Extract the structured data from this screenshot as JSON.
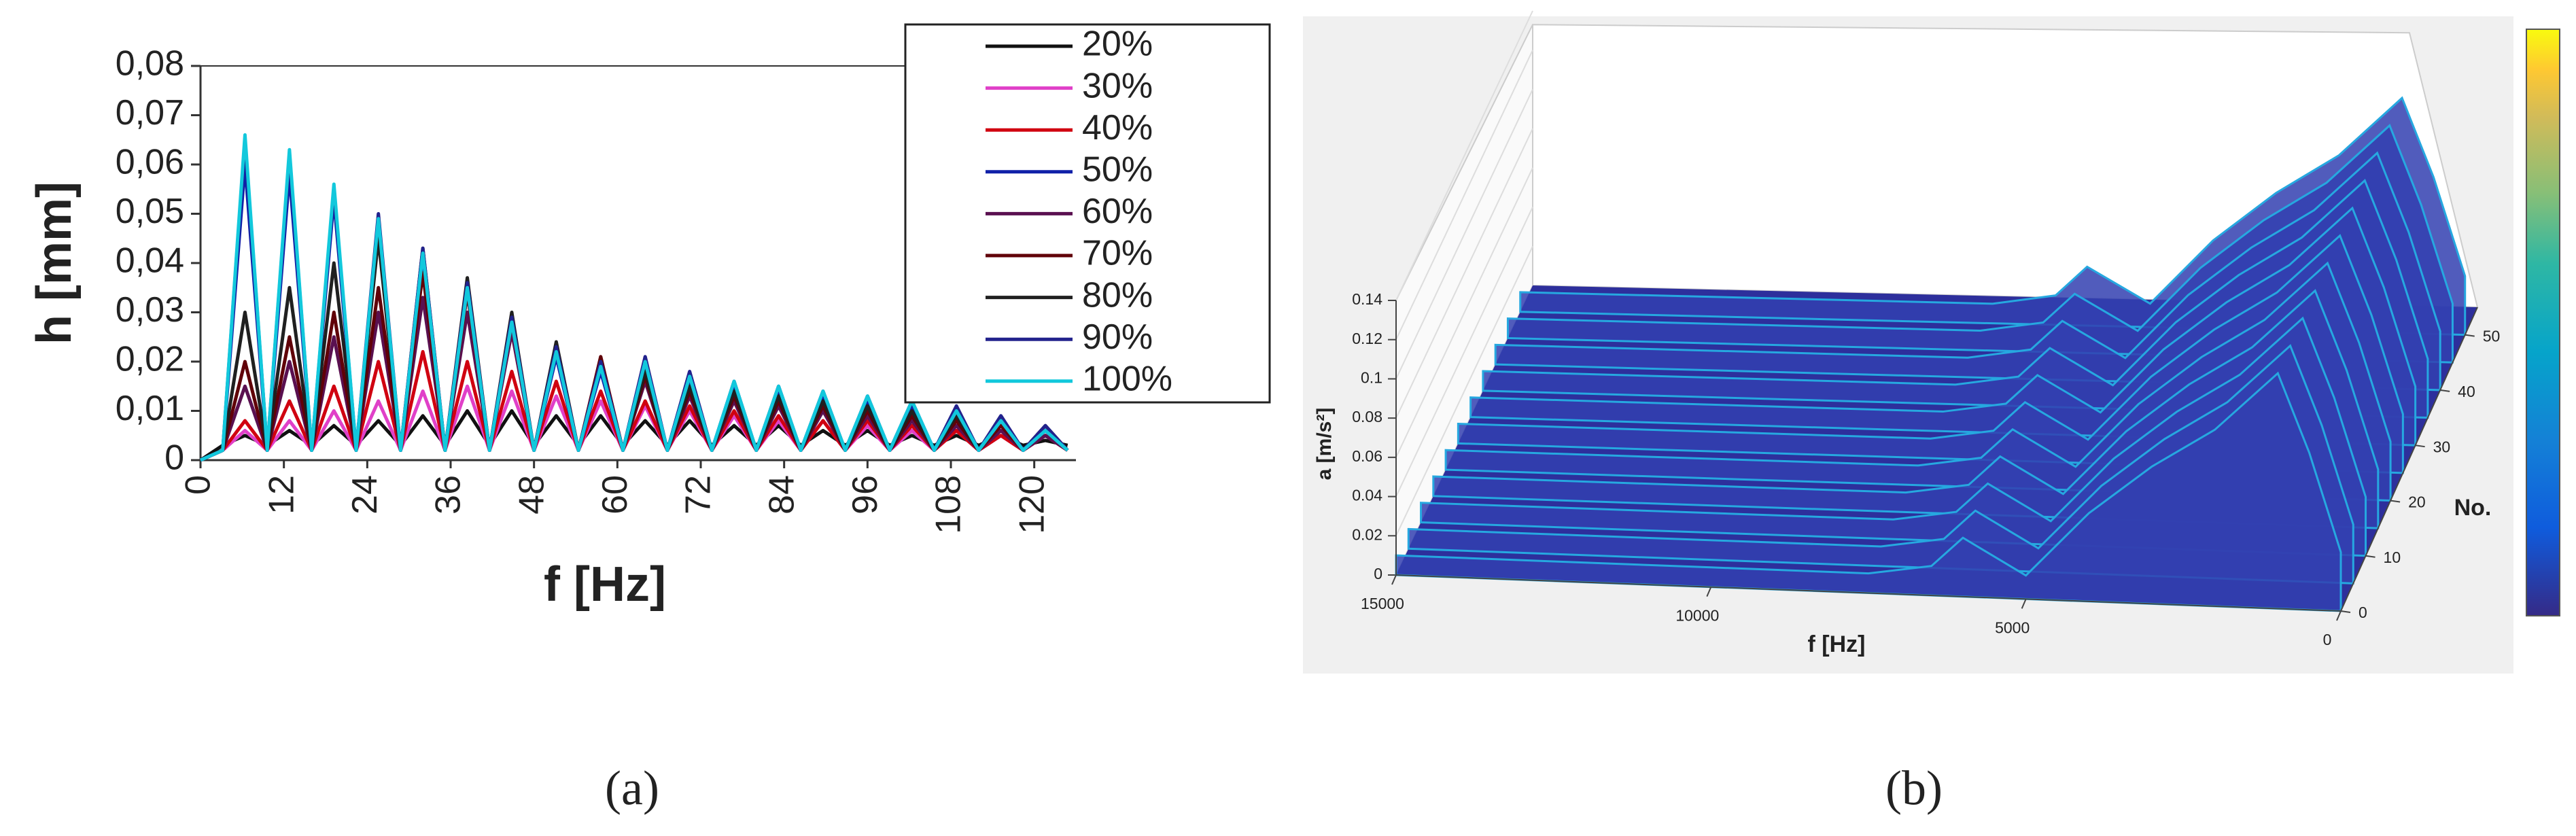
{
  "chart_data": [
    {
      "type": "line",
      "xlabel": "f [Hz]",
      "ylabel": "h [mm]",
      "caption": "(a)",
      "x": [
        0,
        3.2,
        6.4,
        9.6,
        12.8,
        16,
        19.2,
        22.4,
        25.6,
        28.8,
        32,
        35.2,
        38.4,
        41.6,
        44.8,
        48,
        51.2,
        54.4,
        57.6,
        60.8,
        64,
        67.2,
        70.4,
        73.6,
        76.8,
        80,
        83.2,
        86.4,
        89.6,
        92.8,
        96,
        99.2,
        102.4,
        105.6,
        108.8,
        112,
        115.2,
        118.4,
        121.6,
        124.8
      ],
      "xlim": [
        0,
        126
      ],
      "xticks": [
        0,
        12,
        24,
        36,
        48,
        60,
        72,
        84,
        96,
        108,
        120
      ],
      "ylim": [
        0,
        0.08
      ],
      "yticks": [
        0,
        {
          "value": 0.01,
          "label": "0,01"
        },
        {
          "value": 0.02,
          "label": "0,02"
        },
        {
          "value": 0.03,
          "label": "0,03"
        },
        {
          "value": 0.04,
          "label": "0,04"
        },
        {
          "value": 0.05,
          "label": "0,05"
        },
        {
          "value": 0.06,
          "label": "0,06"
        },
        {
          "value": 0.07,
          "label": "0,07"
        },
        {
          "value": 0.08,
          "label": "0,08"
        }
      ],
      "legend": "upper right",
      "series": [
        {
          "name": "20%",
          "color": "#111111",
          "values": [
            0,
            0.003,
            0.005,
            0.003,
            0.006,
            0.003,
            0.007,
            0.003,
            0.008,
            0.003,
            0.009,
            0.003,
            0.01,
            0.003,
            0.01,
            0.003,
            0.009,
            0.003,
            0.009,
            0.003,
            0.008,
            0.003,
            0.008,
            0.003,
            0.007,
            0.003,
            0.007,
            0.003,
            0.006,
            0.003,
            0.006,
            0.003,
            0.005,
            0.003,
            0.005,
            0.003,
            0.005,
            0.003,
            0.004,
            0.003
          ]
        },
        {
          "name": "30%",
          "color": "#e040c8",
          "values": [
            0,
            0.002,
            0.006,
            0.002,
            0.008,
            0.002,
            0.01,
            0.002,
            0.012,
            0.002,
            0.014,
            0.002,
            0.015,
            0.002,
            0.014,
            0.002,
            0.013,
            0.002,
            0.012,
            0.002,
            0.011,
            0.002,
            0.01,
            0.002,
            0.009,
            0.002,
            0.008,
            0.002,
            0.008,
            0.002,
            0.007,
            0.002,
            0.006,
            0.002,
            0.006,
            0.002,
            0.005,
            0.002,
            0.005,
            0.002
          ]
        },
        {
          "name": "40%",
          "color": "#d00010",
          "values": [
            0,
            0.002,
            0.008,
            0.002,
            0.012,
            0.002,
            0.015,
            0.002,
            0.02,
            0.002,
            0.022,
            0.002,
            0.02,
            0.002,
            0.018,
            0.002,
            0.016,
            0.002,
            0.014,
            0.002,
            0.012,
            0.002,
            0.011,
            0.002,
            0.01,
            0.002,
            0.009,
            0.002,
            0.008,
            0.002,
            0.008,
            0.002,
            0.007,
            0.002,
            0.006,
            0.002,
            0.005,
            0.002,
            0.005,
            0.002
          ]
        },
        {
          "name": "50%",
          "color": "#1020a8",
          "values": [
            0,
            0.002,
            0.06,
            0.002,
            0.058,
            0.002,
            0.053,
            0.002,
            0.048,
            0.002,
            0.041,
            0.002,
            0.034,
            0.002,
            0.027,
            0.002,
            0.021,
            0.002,
            0.018,
            0.002,
            0.019,
            0.002,
            0.016,
            0.002,
            0.015,
            0.002,
            0.014,
            0.002,
            0.013,
            0.002,
            0.012,
            0.002,
            0.011,
            0.002,
            0.01,
            0.002,
            0.008,
            0.002,
            0.006,
            0.002
          ]
        },
        {
          "name": "60%",
          "color": "#5a1050",
          "values": [
            0,
            0.002,
            0.015,
            0.002,
            0.02,
            0.002,
            0.025,
            0.002,
            0.03,
            0.002,
            0.033,
            0.002,
            0.03,
            0.002,
            0.026,
            0.002,
            0.022,
            0.002,
            0.02,
            0.002,
            0.016,
            0.002,
            0.013,
            0.002,
            0.012,
            0.002,
            0.011,
            0.002,
            0.01,
            0.002,
            0.009,
            0.002,
            0.008,
            0.002,
            0.007,
            0.002,
            0.006,
            0.002,
            0.005,
            0.002
          ]
        },
        {
          "name": "70%",
          "color": "#600008",
          "values": [
            0,
            0.002,
            0.02,
            0.002,
            0.025,
            0.002,
            0.03,
            0.002,
            0.035,
            0.002,
            0.038,
            0.002,
            0.034,
            0.002,
            0.028,
            0.002,
            0.023,
            0.002,
            0.021,
            0.002,
            0.017,
            0.002,
            0.014,
            0.002,
            0.013,
            0.002,
            0.012,
            0.002,
            0.011,
            0.002,
            0.01,
            0.002,
            0.009,
            0.002,
            0.008,
            0.002,
            0.007,
            0.002,
            0.006,
            0.002
          ]
        },
        {
          "name": "80%",
          "color": "#202020",
          "values": [
            0,
            0.002,
            0.03,
            0.002,
            0.035,
            0.002,
            0.04,
            0.002,
            0.045,
            0.002,
            0.043,
            0.002,
            0.037,
            0.002,
            0.03,
            0.002,
            0.024,
            0.002,
            0.02,
            0.002,
            0.018,
            0.002,
            0.015,
            0.002,
            0.014,
            0.002,
            0.013,
            0.002,
            0.012,
            0.002,
            0.011,
            0.002,
            0.01,
            0.002,
            0.009,
            0.002,
            0.008,
            0.002,
            0.007,
            0.002
          ]
        },
        {
          "name": "90%",
          "color": "#22228c",
          "values": [
            0,
            0.002,
            0.065,
            0.002,
            0.062,
            0.002,
            0.055,
            0.002,
            0.05,
            0.002,
            0.043,
            0.002,
            0.036,
            0.002,
            0.029,
            0.002,
            0.023,
            0.002,
            0.02,
            0.002,
            0.021,
            0.002,
            0.018,
            0.002,
            0.016,
            0.002,
            0.015,
            0.002,
            0.014,
            0.002,
            0.013,
            0.002,
            0.012,
            0.002,
            0.011,
            0.002,
            0.009,
            0.002,
            0.007,
            0.002
          ]
        },
        {
          "name": "100%",
          "color": "#12c8dc",
          "values": [
            0,
            0.002,
            0.066,
            0.002,
            0.063,
            0.002,
            0.056,
            0.002,
            0.049,
            0.002,
            0.042,
            0.002,
            0.035,
            0.002,
            0.028,
            0.002,
            0.022,
            0.002,
            0.019,
            0.002,
            0.02,
            0.002,
            0.017,
            0.002,
            0.016,
            0.002,
            0.015,
            0.002,
            0.014,
            0.002,
            0.013,
            0.002,
            0.012,
            0.002,
            0.01,
            0.002,
            0.008,
            0.002,
            0.006,
            0.002
          ]
        }
      ]
    },
    {
      "type": "surface3d",
      "xlabel": "f [Hz]",
      "ylabel": "No.",
      "zlabel": "a [m/s²]",
      "caption": "(b)",
      "xlim": [
        0,
        15000
      ],
      "xticks": [
        0,
        5000,
        10000,
        15000
      ],
      "ylim": [
        0,
        55
      ],
      "yticks": [
        0,
        10,
        20,
        30,
        40,
        50
      ],
      "zlim": [
        0,
        0.14
      ],
      "zticks": [
        0,
        0.02,
        0.04,
        0.06,
        0.08,
        0.1,
        0.12,
        0.14
      ],
      "colormap": "parula",
      "colorbar": true,
      "surface": {
        "f": [
          15000,
          12500,
          10000,
          7500,
          6500,
          6000,
          5000,
          4000,
          3000,
          2000,
          1000,
          500,
          0
        ],
        "amplitude": [
          0.01,
          0.01,
          0.01,
          0.01,
          0.015,
          0.03,
          0.012,
          0.045,
          0.07,
          0.09,
          0.12,
          0.08,
          0.03
        ]
      }
    }
  ]
}
